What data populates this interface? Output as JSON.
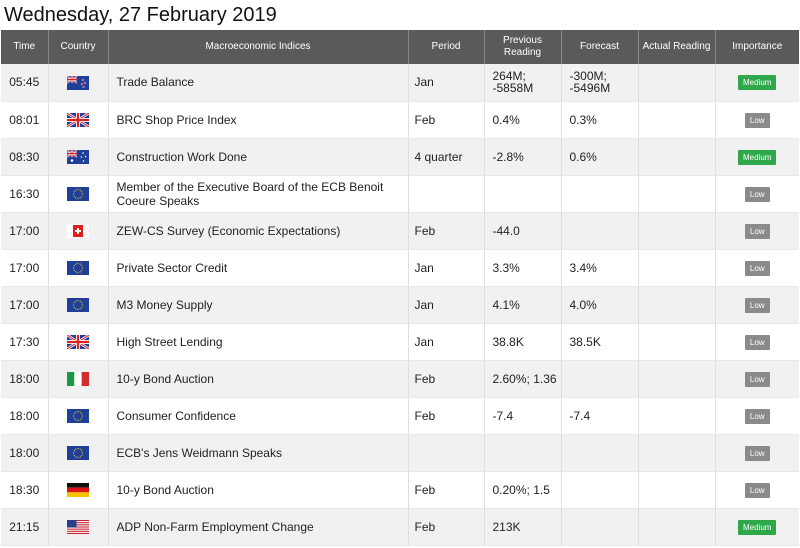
{
  "page_title": "Wednesday, 27 February 2019",
  "columns": {
    "time": "Time",
    "country": "Country",
    "index": "Macroeconomic Indices",
    "period": "Period",
    "previous": "Previous Reading",
    "forecast": "Forecast",
    "actual": "Actual Reading",
    "importance": "Importance"
  },
  "rows": [
    {
      "time": "05:45",
      "flag": "nz-flag",
      "index": "Trade Balance",
      "period": "Jan",
      "previous": "264M; -5858M",
      "forecast": "-300M; -5496M",
      "actual": "",
      "importance": "Medium",
      "level": "medium"
    },
    {
      "time": "08:01",
      "flag": "uk-flag",
      "index": "BRC Shop Price Index",
      "period": "Feb",
      "previous": "0.4%",
      "forecast": "0.3%",
      "actual": "",
      "importance": "Low",
      "level": "low"
    },
    {
      "time": "08:30",
      "flag": "au-flag",
      "index": "Construction Work Done",
      "period": "4 quarter",
      "previous": "-2.8%",
      "forecast": "0.6%",
      "actual": "",
      "importance": "Medium",
      "level": "medium"
    },
    {
      "time": "16:30",
      "flag": "eu-flag",
      "index": "Member of the Executive Board of the ECB Benoit Coeure Speaks",
      "period": "",
      "previous": "",
      "forecast": "",
      "actual": "",
      "importance": "Low",
      "level": "low"
    },
    {
      "time": "17:00",
      "flag": "ch-flag",
      "index": "ZEW-CS Survey (Economic Expectations)",
      "period": "Feb",
      "previous": "-44.0",
      "forecast": "",
      "actual": "",
      "importance": "Low",
      "level": "low"
    },
    {
      "time": "17:00",
      "flag": "eu-flag",
      "index": "Private Sector Credit",
      "period": "Jan",
      "previous": "3.3%",
      "forecast": "3.4%",
      "actual": "",
      "importance": "Low",
      "level": "low"
    },
    {
      "time": "17:00",
      "flag": "eu-flag",
      "index": "M3 Money Supply",
      "period": "Jan",
      "previous": "4.1%",
      "forecast": "4.0%",
      "actual": "",
      "importance": "Low",
      "level": "low"
    },
    {
      "time": "17:30",
      "flag": "uk-flag",
      "index": "High Street Lending",
      "period": "Jan",
      "previous": "38.8K",
      "forecast": "38.5K",
      "actual": "",
      "importance": "Low",
      "level": "low"
    },
    {
      "time": "18:00",
      "flag": "it-flag",
      "index": "10-y Bond Auction",
      "period": "Feb",
      "previous": "2.60%; 1.36",
      "forecast": "",
      "actual": "",
      "importance": "Low",
      "level": "low"
    },
    {
      "time": "18:00",
      "flag": "eu-flag",
      "index": "Consumer Confidence",
      "period": "Feb",
      "previous": "-7.4",
      "forecast": "-7.4",
      "actual": "",
      "importance": "Low",
      "level": "low"
    },
    {
      "time": "18:00",
      "flag": "eu-flag",
      "index": "ECB's Jens Weidmann Speaks",
      "period": "",
      "previous": "",
      "forecast": "",
      "actual": "",
      "importance": "Low",
      "level": "low"
    },
    {
      "time": "18:30",
      "flag": "de-flag",
      "index": "10-y Bond Auction",
      "period": "Feb",
      "previous": "0.20%; 1.5",
      "forecast": "",
      "actual": "",
      "importance": "Low",
      "level": "low"
    },
    {
      "time": "21:15",
      "flag": "us-flag",
      "index": "ADP Non-Farm Employment Change",
      "period": "Feb",
      "previous": "213K",
      "forecast": "",
      "actual": "",
      "importance": "Medium",
      "level": "medium"
    }
  ]
}
